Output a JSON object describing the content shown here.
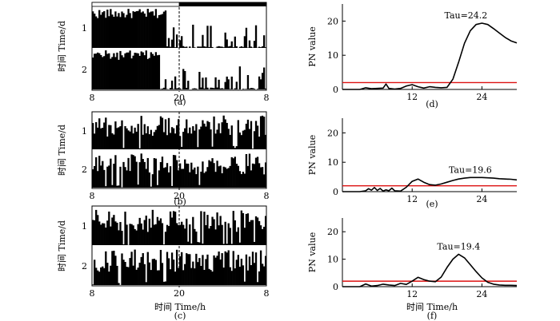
{
  "figure": {
    "shared_xlabel": "时间 Time/h"
  },
  "chart_data": [
    {
      "id": "a",
      "type": "actogram",
      "caption": "(a)",
      "ylabel": "时间 Time/d",
      "day_labels": [
        "1",
        "2"
      ],
      "x_ticks": [
        "8",
        "20",
        "8"
      ],
      "xlim": [
        8,
        32
      ],
      "dashed_x": 20,
      "light_dark_bar": {
        "light": [
          8,
          20
        ],
        "dark": [
          20,
          32
        ]
      },
      "activity_pattern": "day 1 dense 8-18h, sparse after; day 2 dense 8-17h, sparse after"
    },
    {
      "id": "b",
      "type": "actogram",
      "caption": "(b)",
      "ylabel": "时间 Time/d",
      "day_labels": [
        "1",
        "2"
      ],
      "x_ticks": [
        "8",
        "20",
        "8"
      ],
      "xlim": [
        8,
        32
      ],
      "dashed_x": 20,
      "activity_pattern": "irregular activity across whole day"
    },
    {
      "id": "c",
      "type": "actogram",
      "caption": "(c)",
      "ylabel": "时间 Time/d",
      "day_labels": [
        "1",
        "2"
      ],
      "x_ticks": [
        "8",
        "20",
        "8"
      ],
      "xlim": [
        8,
        32
      ],
      "dashed_x": 20,
      "xlabel": "时间 Time/h",
      "activity_pattern": "irregular activity across whole day"
    },
    {
      "id": "d",
      "type": "line",
      "caption": "(d)",
      "ylabel": "PN value",
      "ylim": [
        0,
        25
      ],
      "yticks": [
        0,
        10,
        20
      ],
      "xlim": [
        0,
        30
      ],
      "xticks": [
        12,
        24
      ],
      "threshold": 2,
      "annotation": "Tau=24.2",
      "x": [
        0,
        3,
        4,
        5,
        6,
        7,
        7.5,
        8,
        9,
        10,
        11,
        12,
        13,
        14,
        15,
        16,
        17,
        18,
        19,
        20,
        21,
        22,
        23,
        24,
        25,
        26,
        27,
        28,
        29,
        30
      ],
      "y": [
        0,
        0,
        0.5,
        0.2,
        0.3,
        0.4,
        1.6,
        0.3,
        0.1,
        0.3,
        1.0,
        1.4,
        0.8,
        0.4,
        0.8,
        0.6,
        0.5,
        0.6,
        3,
        8,
        13.5,
        17.2,
        19,
        19.4,
        19,
        17.8,
        16.5,
        15.2,
        14.2,
        13.6
      ]
    },
    {
      "id": "e",
      "type": "line",
      "caption": "(e)",
      "ylabel": "PN value",
      "ylim": [
        0,
        25
      ],
      "yticks": [
        0,
        10,
        20
      ],
      "xlim": [
        0,
        30
      ],
      "xticks": [
        12,
        24
      ],
      "threshold": 2,
      "annotation": "Tau=19.6",
      "x": [
        0,
        3,
        4,
        4.5,
        5,
        5.5,
        6,
        6.5,
        7,
        7.5,
        8,
        8.5,
        9,
        10,
        11,
        12,
        13,
        14,
        15,
        16,
        17,
        18,
        19,
        20,
        21,
        22,
        23,
        24,
        25,
        26,
        27,
        28,
        29,
        30
      ],
      "y": [
        0,
        0,
        0.3,
        1.0,
        0.5,
        1.4,
        0.4,
        1.1,
        0.2,
        0.6,
        0.3,
        1.2,
        0.3,
        0.2,
        1.5,
        3.5,
        4.3,
        3.2,
        2.4,
        2.2,
        2.6,
        3.2,
        3.8,
        4.3,
        4.6,
        4.8,
        4.8,
        4.8,
        4.7,
        4.6,
        4.4,
        4.3,
        4.2,
        4.0
      ]
    },
    {
      "id": "f",
      "type": "line",
      "caption": "(f)",
      "ylabel": "PN value",
      "ylim": [
        0,
        25
      ],
      "yticks": [
        0,
        10,
        20
      ],
      "xlim": [
        0,
        30
      ],
      "xticks": [
        12,
        24
      ],
      "threshold": 2,
      "annotation": "Tau=19.4",
      "x": [
        0,
        3,
        4,
        5,
        6,
        7,
        8,
        9,
        10,
        11,
        12,
        13,
        14,
        15,
        16,
        17,
        18,
        19,
        20,
        21,
        22,
        23,
        24,
        25,
        26,
        27,
        28,
        29,
        30
      ],
      "y": [
        0,
        0,
        1.0,
        0.2,
        0.4,
        0.9,
        0.6,
        0.4,
        1.2,
        0.8,
        2.0,
        3.4,
        2.6,
        2.0,
        1.8,
        3.5,
        7,
        10,
        11.8,
        10.5,
        8,
        5.5,
        3.2,
        1.6,
        0.9,
        0.6,
        0.5,
        0.5,
        0.4
      ]
    }
  ]
}
